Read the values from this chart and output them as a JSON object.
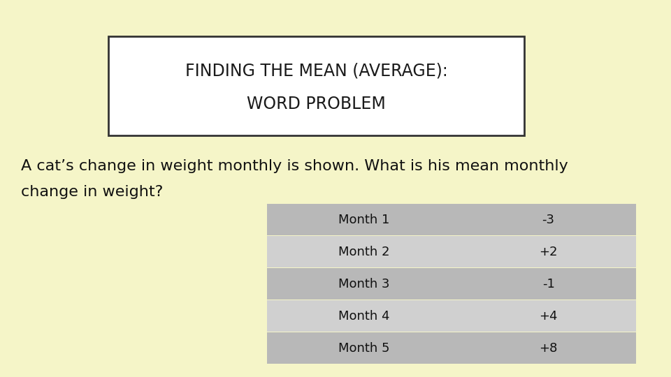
{
  "background_color": "#f5f5c8",
  "title_line1": "FINDING THE MEAN (AVERAGE):",
  "title_line2": "WORD PROBLEM",
  "title_box_color": "#ffffff",
  "title_box_edge_color": "#333333",
  "body_text_line1": "A cat’s change in weight monthly is shown. What is his mean monthly",
  "body_text_line2": "change in weight?",
  "table_months": [
    "Month 1",
    "Month 2",
    "Month 3",
    "Month 4",
    "Month 5"
  ],
  "table_values": [
    "-3",
    "+2",
    "-1",
    "+4",
    "+8"
  ],
  "table_color_dark": "#b8b8b8",
  "table_color_light": "#d0d0d0",
  "font_family": "DejaVu Sans",
  "title_fontsize": 17,
  "body_fontsize": 16,
  "table_fontsize": 13
}
